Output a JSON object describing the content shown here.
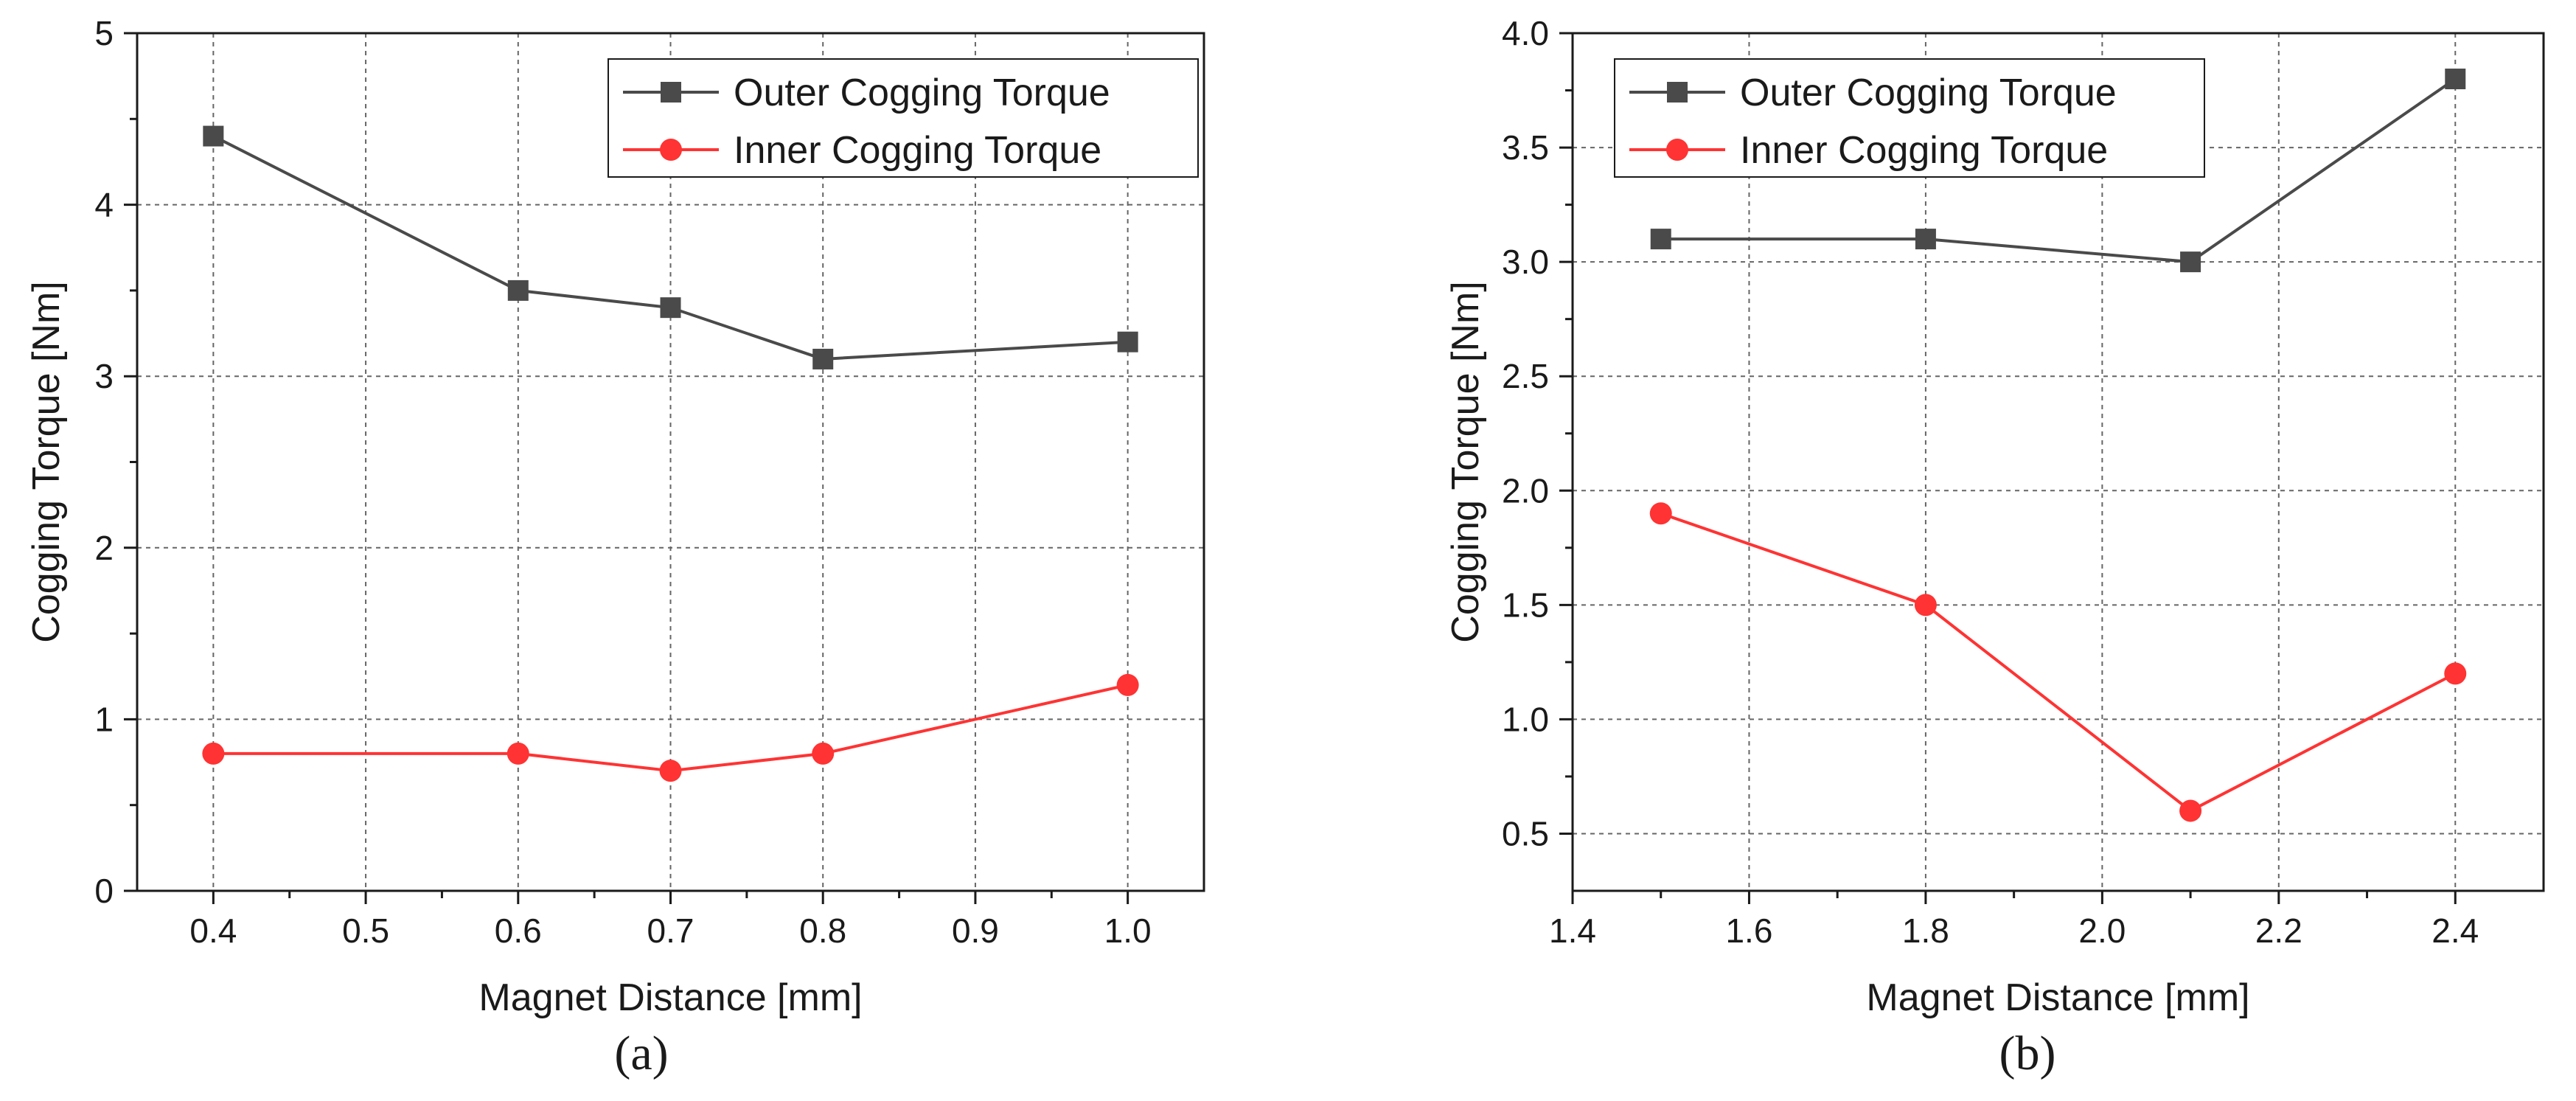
{
  "colors": {
    "outer": "#4a4a4a",
    "inner": "#ff3333",
    "axis": "#1a1a1a",
    "grid": "#666666"
  },
  "chart_data": [
    {
      "panel_label": "(a)",
      "type": "line",
      "title": "",
      "xlabel": "Magnet Distance [mm]",
      "ylabel": "Cogging Torque [Nm]",
      "xlim": [
        0.35,
        1.05
      ],
      "ylim": [
        0,
        5
      ],
      "xticks": [
        0.4,
        0.5,
        0.6,
        0.7,
        0.8,
        0.9,
        1.0
      ],
      "xtick_labels": [
        "0.4",
        "0.5",
        "0.6",
        "0.7",
        "0.8",
        "0.9",
        "1.0"
      ],
      "yticks": [
        0,
        1,
        2,
        3,
        4,
        5
      ],
      "ytick_labels": [
        "0",
        "1",
        "2",
        "3",
        "4",
        "5"
      ],
      "grid": true,
      "legend_position": "top-right",
      "series": [
        {
          "name": "Outer Cogging Torque",
          "marker": "square",
          "x": [
            0.4,
            0.6,
            0.7,
            0.8,
            1.0
          ],
          "values": [
            4.4,
            3.5,
            3.4,
            3.1,
            3.2
          ]
        },
        {
          "name": "Inner Cogging Torque",
          "marker": "circle",
          "x": [
            0.4,
            0.6,
            0.7,
            0.8,
            1.0
          ],
          "values": [
            0.8,
            0.8,
            0.7,
            0.8,
            1.2
          ]
        }
      ]
    },
    {
      "panel_label": "(b)",
      "type": "line",
      "title": "",
      "xlabel": "Magnet Distance [mm]",
      "ylabel": "Cogging Torque [Nm]",
      "xlim": [
        1.4,
        2.5
      ],
      "ylim": [
        0.25,
        4.0
      ],
      "xticks": [
        1.4,
        1.6,
        1.8,
        2.0,
        2.2,
        2.4
      ],
      "xtick_labels": [
        "1.4",
        "1.6",
        "1.8",
        "2.0",
        "2.2",
        "2.4"
      ],
      "yticks": [
        0.5,
        1.0,
        1.5,
        2.0,
        2.5,
        3.0,
        3.5,
        4.0
      ],
      "ytick_labels": [
        "0.5",
        "1.0",
        "1.5",
        "2.0",
        "2.5",
        "3.0",
        "3.5",
        "4.0"
      ],
      "grid": true,
      "legend_position": "top-left",
      "series": [
        {
          "name": "Outer Cogging Torque",
          "marker": "square",
          "x": [
            1.5,
            1.8,
            2.1,
            2.4
          ],
          "values": [
            3.1,
            3.1,
            3.0,
            3.8
          ]
        },
        {
          "name": "Inner Cogging Torque",
          "marker": "circle",
          "x": [
            1.5,
            1.8,
            2.1,
            2.4
          ],
          "values": [
            1.9,
            1.5,
            0.6,
            1.2
          ]
        }
      ]
    }
  ]
}
